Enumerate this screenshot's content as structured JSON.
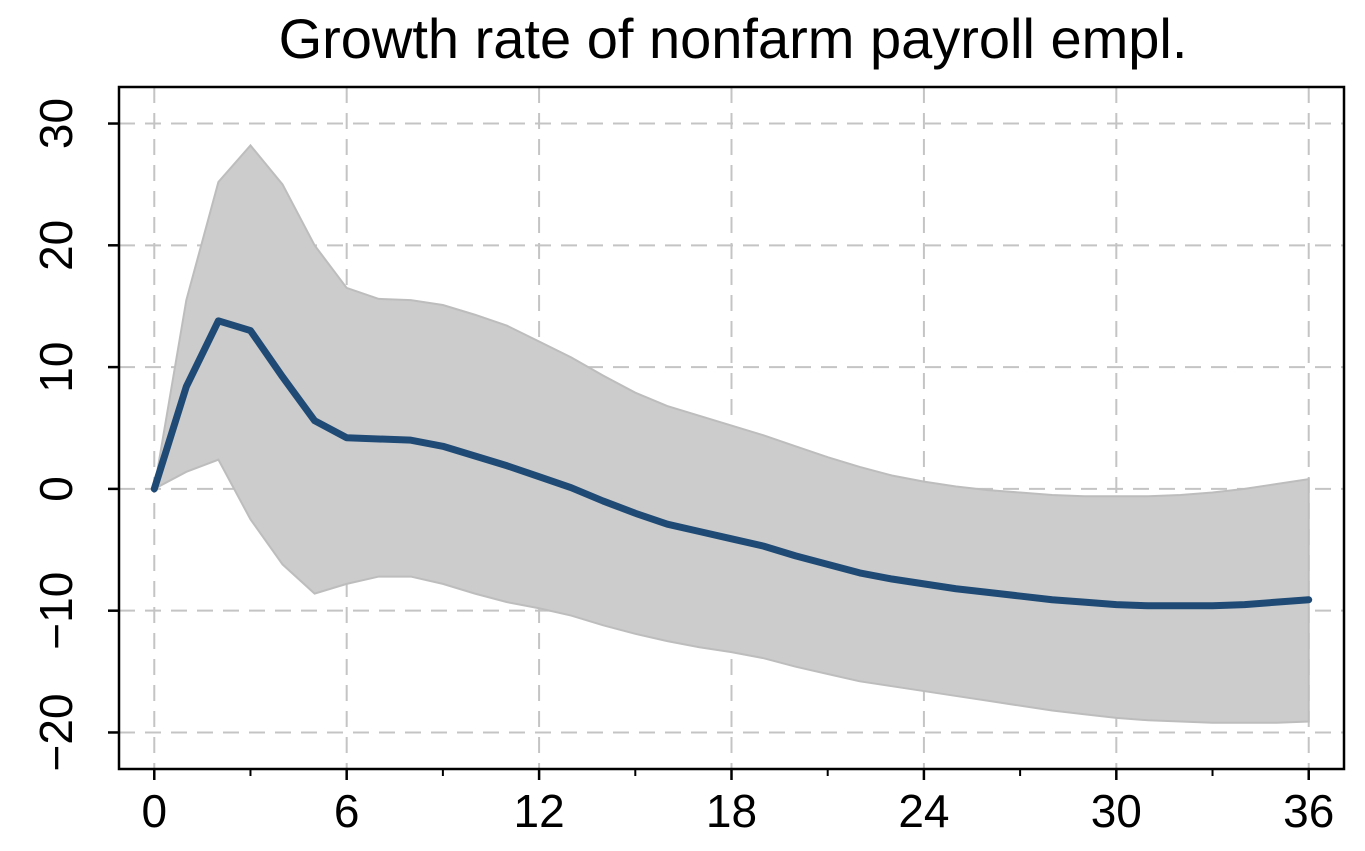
{
  "chart_data": {
    "type": "area",
    "title": "Growth rate of nonfarm payroll empl.",
    "xlabel": "",
    "ylabel": "",
    "xlim": [
      -1.1,
      37.1
    ],
    "ylim": [
      -23.0,
      33.0
    ],
    "x_ticks": [
      0,
      6,
      12,
      18,
      24,
      30,
      36
    ],
    "x_tick_labels": [
      "0",
      "6",
      "12",
      "18",
      "24",
      "30",
      "36"
    ],
    "x_minor_ticks": [
      3,
      9,
      15,
      21,
      27,
      33
    ],
    "y_ticks": [
      -20,
      -10,
      0,
      10,
      20,
      30
    ],
    "y_tick_labels": [
      "−20",
      "−10",
      "0",
      "10",
      "20",
      "30"
    ],
    "grid": true,
    "colors": {
      "line": "#1f4a75",
      "band": "#cccccc",
      "band_edge": "#bdbdbd",
      "grid": "#c4c4c4"
    },
    "x": [
      0,
      1,
      2,
      3,
      4,
      5,
      6,
      7,
      8,
      9,
      10,
      11,
      12,
      13,
      14,
      15,
      16,
      17,
      18,
      19,
      20,
      21,
      22,
      23,
      24,
      25,
      26,
      27,
      28,
      29,
      30,
      31,
      32,
      33,
      34,
      35,
      36
    ],
    "series": [
      {
        "role": "estimate",
        "values": [
          0,
          8.4,
          13.8,
          13.0,
          9.2,
          5.6,
          4.2,
          4.1,
          4.0,
          3.5,
          2.7,
          1.9,
          1.0,
          0.1,
          -1.0,
          -2.0,
          -2.9,
          -3.5,
          -4.1,
          -4.7,
          -5.5,
          -6.2,
          -6.9,
          -7.4,
          -7.8,
          -8.2,
          -8.5,
          -8.8,
          -9.1,
          -9.3,
          -9.5,
          -9.6,
          -9.6,
          -9.6,
          -9.5,
          -9.3,
          -9.1
        ]
      },
      {
        "role": "upper_band",
        "values": [
          0,
          15.5,
          25.2,
          28.2,
          25.0,
          20.0,
          16.5,
          15.6,
          15.5,
          15.1,
          14.3,
          13.4,
          12.1,
          10.8,
          9.3,
          7.9,
          6.8,
          6.0,
          5.2,
          4.4,
          3.5,
          2.6,
          1.8,
          1.1,
          0.6,
          0.2,
          -0.1,
          -0.3,
          -0.5,
          -0.6,
          -0.6,
          -0.6,
          -0.5,
          -0.3,
          0.0,
          0.4,
          0.8
        ]
      },
      {
        "role": "lower_band",
        "values": [
          0,
          1.4,
          2.4,
          -2.5,
          -6.2,
          -8.6,
          -7.8,
          -7.2,
          -7.2,
          -7.8,
          -8.6,
          -9.3,
          -9.8,
          -10.4,
          -11.2,
          -11.9,
          -12.5,
          -13.0,
          -13.4,
          -13.9,
          -14.6,
          -15.2,
          -15.8,
          -16.2,
          -16.6,
          -17.0,
          -17.4,
          -17.8,
          -18.2,
          -18.5,
          -18.8,
          -19.0,
          -19.1,
          -19.2,
          -19.2,
          -19.2,
          -19.1
        ]
      }
    ]
  }
}
